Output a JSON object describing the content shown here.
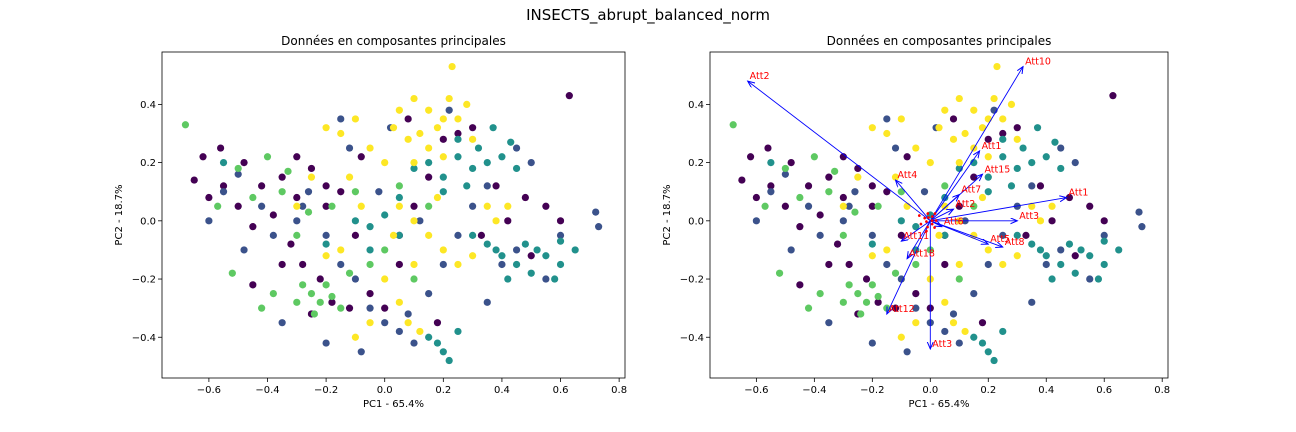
{
  "suptitle": "INSECTS_abrupt_balanced_norm",
  "chart_data": [
    {
      "type": "scatter",
      "title": "Données en composantes principales",
      "xlabel": "PC1 - 65.4%",
      "ylabel": "PC2 - 18.7%",
      "xlim": [
        -0.76,
        0.82
      ],
      "ylim": [
        -0.54,
        0.58
      ],
      "xticks": [
        -0.6,
        -0.4,
        -0.2,
        0.0,
        0.2,
        0.4,
        0.6,
        0.8
      ],
      "xtick_labels": [
        "−0.6",
        "−0.4",
        "−0.2",
        "0.0",
        "0.2",
        "0.4",
        "0.6",
        "0.8"
      ],
      "yticks": [
        -0.4,
        -0.2,
        0.0,
        0.2,
        0.4
      ],
      "ytick_labels": [
        "−0.4",
        "−0.2",
        "0.0",
        "0.2",
        "0.4"
      ],
      "grid": false,
      "series": [
        {
          "color": "#440154",
          "points": [
            [
              -0.62,
              0.22
            ],
            [
              -0.56,
              0.25
            ],
            [
              -0.48,
              0.2
            ],
            [
              -0.42,
              0.12
            ],
            [
              -0.35,
              0.15
            ],
            [
              -0.3,
              0.08
            ],
            [
              -0.25,
              0.18
            ],
            [
              -0.2,
              0.05
            ],
            [
              -0.15,
              0.1
            ],
            [
              -0.1,
              -0.05
            ],
            [
              -0.5,
              0.05
            ],
            [
              -0.45,
              -0.02
            ],
            [
              -0.38,
              0.02
            ],
            [
              -0.32,
              -0.08
            ],
            [
              -0.28,
              -0.15
            ],
            [
              -0.22,
              -0.2
            ],
            [
              -0.18,
              -0.28
            ],
            [
              -0.12,
              -0.3
            ],
            [
              -0.05,
              -0.25
            ],
            [
              0.0,
              -0.3
            ],
            [
              0.05,
              -0.05
            ],
            [
              0.1,
              0.05
            ],
            [
              0.15,
              0.15
            ],
            [
              0.2,
              0.28
            ],
            [
              0.25,
              0.3
            ],
            [
              0.3,
              0.32
            ],
            [
              0.42,
              0.0
            ],
            [
              0.48,
              0.08
            ],
            [
              0.55,
              0.05
            ],
            [
              0.63,
              0.43
            ],
            [
              0.6,
              0.0
            ],
            [
              -0.65,
              0.14
            ],
            [
              -0.55,
              0.12
            ],
            [
              -0.6,
              0.08
            ],
            [
              0.38,
              0.12
            ],
            [
              0.33,
              -0.05
            ],
            [
              0.18,
              -0.35
            ],
            [
              -0.08,
              0.22
            ],
            [
              -0.25,
              -0.32
            ],
            [
              -0.45,
              -0.22
            ],
            [
              0.5,
              -0.12
            ],
            [
              -0.3,
              0.22
            ],
            [
              -0.35,
              -0.15
            ],
            [
              0.08,
              0.35
            ],
            [
              -0.2,
              0.12
            ],
            [
              0.05,
              -0.15
            ]
          ]
        },
        {
          "color": "#3b528b",
          "points": [
            [
              -0.55,
              0.1
            ],
            [
              -0.5,
              0.16
            ],
            [
              -0.42,
              0.05
            ],
            [
              -0.38,
              -0.05
            ],
            [
              -0.3,
              0.0
            ],
            [
              -0.26,
              0.1
            ],
            [
              -0.2,
              -0.05
            ],
            [
              -0.15,
              -0.15
            ],
            [
              -0.1,
              -0.2
            ],
            [
              -0.05,
              -0.3
            ],
            [
              0.0,
              -0.35
            ],
            [
              0.05,
              -0.38
            ],
            [
              0.1,
              -0.42
            ],
            [
              0.08,
              -0.32
            ],
            [
              0.15,
              -0.25
            ],
            [
              0.2,
              -0.15
            ],
            [
              0.25,
              -0.05
            ],
            [
              0.3,
              0.05
            ],
            [
              0.35,
              0.12
            ],
            [
              0.4,
              -0.15
            ],
            [
              0.45,
              -0.1
            ],
            [
              0.5,
              0.2
            ],
            [
              0.55,
              -0.2
            ],
            [
              0.72,
              0.03
            ],
            [
              0.73,
              -0.02
            ],
            [
              -0.12,
              0.25
            ],
            [
              -0.02,
              0.1
            ],
            [
              0.12,
              0.0
            ],
            [
              -0.35,
              -0.35
            ],
            [
              -0.2,
              -0.42
            ],
            [
              -0.08,
              -0.45
            ],
            [
              0.02,
              0.32
            ],
            [
              0.22,
              0.38
            ],
            [
              -0.6,
              0.0
            ],
            [
              -0.48,
              -0.1
            ],
            [
              0.35,
              -0.28
            ],
            [
              0.6,
              -0.05
            ],
            [
              -0.28,
              0.05
            ],
            [
              0.45,
              0.25
            ],
            [
              -0.15,
              0.35
            ]
          ]
        },
        {
          "color": "#21918c",
          "points": [
            [
              0.15,
              0.2
            ],
            [
              0.2,
              0.15
            ],
            [
              0.25,
              0.22
            ],
            [
              0.3,
              0.18
            ],
            [
              0.35,
              0.2
            ],
            [
              0.2,
              0.1
            ],
            [
              0.28,
              0.12
            ],
            [
              0.32,
              0.25
            ],
            [
              0.4,
              0.22
            ],
            [
              0.45,
              0.18
            ],
            [
              0.25,
              0.28
            ],
            [
              0.1,
              0.18
            ],
            [
              0.4,
              -0.12
            ],
            [
              0.45,
              -0.15
            ],
            [
              0.5,
              -0.18
            ],
            [
              0.55,
              -0.12
            ],
            [
              0.48,
              -0.08
            ],
            [
              0.38,
              -0.1
            ],
            [
              0.6,
              -0.15
            ],
            [
              0.35,
              -0.08
            ],
            [
              0.3,
              -0.05
            ],
            [
              0.42,
              -0.2
            ],
            [
              0.52,
              -0.1
            ],
            [
              0.58,
              -0.2
            ],
            [
              0.65,
              -0.1
            ],
            [
              0.15,
              -0.4
            ],
            [
              0.2,
              -0.45
            ],
            [
              0.22,
              -0.48
            ],
            [
              0.18,
              -0.42
            ],
            [
              0.25,
              -0.38
            ],
            [
              -0.05,
              -0.02
            ],
            [
              0.0,
              0.02
            ],
            [
              -0.1,
              0.0
            ],
            [
              -0.05,
              -0.1
            ],
            [
              0.05,
              -0.05
            ],
            [
              -0.2,
              -0.08
            ],
            [
              0.05,
              0.08
            ],
            [
              0.37,
              0.32
            ],
            [
              0.43,
              0.27
            ],
            [
              -0.55,
              0.2
            ],
            [
              0.6,
              -0.07
            ]
          ]
        },
        {
          "color": "#5ec962",
          "points": [
            [
              -0.68,
              0.33
            ],
            [
              -0.57,
              0.05
            ],
            [
              -0.25,
              -0.25
            ],
            [
              -0.22,
              -0.28
            ],
            [
              -0.2,
              -0.22
            ],
            [
              -0.28,
              -0.22
            ],
            [
              -0.18,
              -0.26
            ],
            [
              -0.3,
              -0.28
            ],
            [
              -0.15,
              -0.3
            ],
            [
              -0.24,
              -0.32
            ],
            [
              -0.5,
              0.18
            ],
            [
              -0.4,
              0.22
            ],
            [
              -0.35,
              0.1
            ],
            [
              -0.3,
              -0.05
            ],
            [
              -0.1,
              0.1
            ],
            [
              0.1,
              -0.2
            ],
            [
              -0.05,
              -0.15
            ],
            [
              0.05,
              0.12
            ],
            [
              -0.42,
              -0.3
            ],
            [
              -0.38,
              -0.25
            ],
            [
              -0.52,
              -0.18
            ],
            [
              0.15,
              0.05
            ],
            [
              -0.12,
              -0.18
            ],
            [
              0.0,
              -0.1
            ],
            [
              -0.18,
              0.05
            ],
            [
              -0.26,
              0.03
            ],
            [
              -0.33,
              0.17
            ],
            [
              -0.45,
              0.08
            ]
          ]
        },
        {
          "color": "#fde725",
          "points": [
            [
              0.23,
              0.53
            ],
            [
              0.05,
              0.38
            ],
            [
              0.1,
              0.42
            ],
            [
              0.15,
              0.38
            ],
            [
              0.2,
              0.35
            ],
            [
              0.12,
              0.3
            ],
            [
              0.08,
              0.28
            ],
            [
              0.18,
              0.32
            ],
            [
              0.25,
              0.35
            ],
            [
              0.3,
              0.28
            ],
            [
              0.03,
              0.32
            ],
            [
              -0.05,
              0.25
            ],
            [
              0.0,
              0.2
            ],
            [
              0.1,
              0.2
            ],
            [
              0.15,
              0.25
            ],
            [
              0.2,
              0.22
            ],
            [
              -0.15,
              0.3
            ],
            [
              -0.1,
              0.35
            ],
            [
              -0.2,
              0.32
            ],
            [
              0.05,
              0.05
            ],
            [
              0.1,
              0.0
            ],
            [
              0.15,
              -0.05
            ],
            [
              0.2,
              -0.1
            ],
            [
              0.25,
              -0.15
            ],
            [
              0.3,
              -0.12
            ],
            [
              0.1,
              -0.15
            ],
            [
              -0.15,
              -0.1
            ],
            [
              -0.2,
              -0.12
            ],
            [
              0.0,
              -0.2
            ],
            [
              0.05,
              -0.28
            ],
            [
              0.08,
              -0.35
            ],
            [
              0.12,
              -0.38
            ],
            [
              -0.05,
              -0.35
            ],
            [
              -0.1,
              -0.4
            ],
            [
              0.35,
              0.05
            ],
            [
              0.38,
              0.0
            ],
            [
              0.42,
              0.05
            ],
            [
              -0.3,
              0.05
            ],
            [
              -0.25,
              0.15
            ],
            [
              -0.08,
              0.05
            ],
            [
              0.22,
              0.42
            ],
            [
              0.28,
              0.4
            ],
            [
              -0.12,
              0.15
            ],
            [
              0.03,
              -0.05
            ],
            [
              0.18,
              0.08
            ]
          ]
        }
      ],
      "arrows": []
    },
    {
      "type": "scatter",
      "title": "Données en composantes principales",
      "xlabel": "PC1 - 65.4%",
      "ylabel": "PC2 - 18.7%",
      "xlim": [
        -0.76,
        0.82
      ],
      "ylim": [
        -0.54,
        0.58
      ],
      "xticks": [
        -0.6,
        -0.4,
        -0.2,
        0.0,
        0.2,
        0.4,
        0.6,
        0.8
      ],
      "xtick_labels": [
        "−0.6",
        "−0.4",
        "−0.2",
        "0.0",
        "0.2",
        "0.4",
        "0.6",
        "0.8"
      ],
      "yticks": [
        -0.4,
        -0.2,
        0.0,
        0.2,
        0.4
      ],
      "ytick_labels": [
        "−0.4",
        "−0.2",
        "0.0",
        "0.2",
        "0.4"
      ],
      "grid": false,
      "series": "same-as-left",
      "arrows": [
        {
          "label": "Att2",
          "x": -0.63,
          "y": 0.48
        },
        {
          "label": "Att10",
          "x": 0.32,
          "y": 0.53
        },
        {
          "label": "Att1",
          "x": 0.47,
          "y": 0.08
        },
        {
          "label": "Att3",
          "x": 0.3,
          "y": 0.0
        },
        {
          "label": "Att15",
          "x": 0.18,
          "y": 0.16
        },
        {
          "label": "Att1",
          "x": 0.17,
          "y": 0.24
        },
        {
          "label": "Att4",
          "x": -0.12,
          "y": 0.14
        },
        {
          "label": "Att7",
          "x": 0.1,
          "y": 0.09
        },
        {
          "label": "Att2",
          "x": 0.08,
          "y": 0.04
        },
        {
          "label": "Att5",
          "x": 0.2,
          "y": -0.08
        },
        {
          "label": "Att8",
          "x": 0.25,
          "y": -0.09
        },
        {
          "label": "Att11",
          "x": -0.1,
          "y": -0.07
        },
        {
          "label": "Att6",
          "x": 0.04,
          "y": -0.02
        },
        {
          "label": "Att18",
          "x": -0.08,
          "y": -0.13
        },
        {
          "label": "Att12",
          "x": -0.15,
          "y": -0.32
        },
        {
          "label": "Att3",
          "x": 0.0,
          "y": -0.44
        }
      ]
    }
  ]
}
